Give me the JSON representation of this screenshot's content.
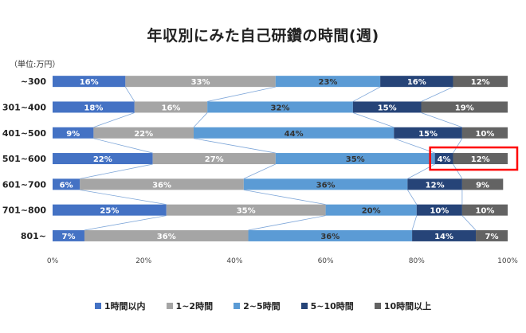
{
  "chart_data": {
    "type": "bar",
    "orientation": "horizontal-stacked-100",
    "title": "年収別にみた自己研鑽の時間(週)",
    "unit_label": "（単位:万円）",
    "categories": [
      "~300",
      "301~400",
      "401~500",
      "501~600",
      "601~700",
      "701~800",
      "801~"
    ],
    "series": [
      {
        "name": "1時間以内",
        "color": "#4472C4",
        "values": [
          16,
          18,
          9,
          22,
          6,
          25,
          7
        ]
      },
      {
        "name": "1~2時間",
        "color": "#A5A5A5",
        "values": [
          33,
          16,
          22,
          27,
          36,
          35,
          36
        ]
      },
      {
        "name": "2~5時間",
        "color": "#5B9BD5",
        "values": [
          23,
          32,
          44,
          35,
          36,
          20,
          36
        ]
      },
      {
        "name": "5~10時間",
        "color": "#264478",
        "values": [
          16,
          15,
          15,
          4,
          12,
          10,
          14
        ]
      },
      {
        "name": "10時間以上",
        "color": "#636363",
        "values": [
          12,
          19,
          10,
          12,
          9,
          10,
          7
        ]
      }
    ],
    "xticks": [
      "0%",
      "20%",
      "40%",
      "60%",
      "80%",
      "100%"
    ],
    "xlim": [
      0,
      100
    ],
    "highlight": {
      "category": "501~600",
      "series": [
        "5~10時間",
        "10時間以上"
      ],
      "color": "#FF0000"
    }
  }
}
